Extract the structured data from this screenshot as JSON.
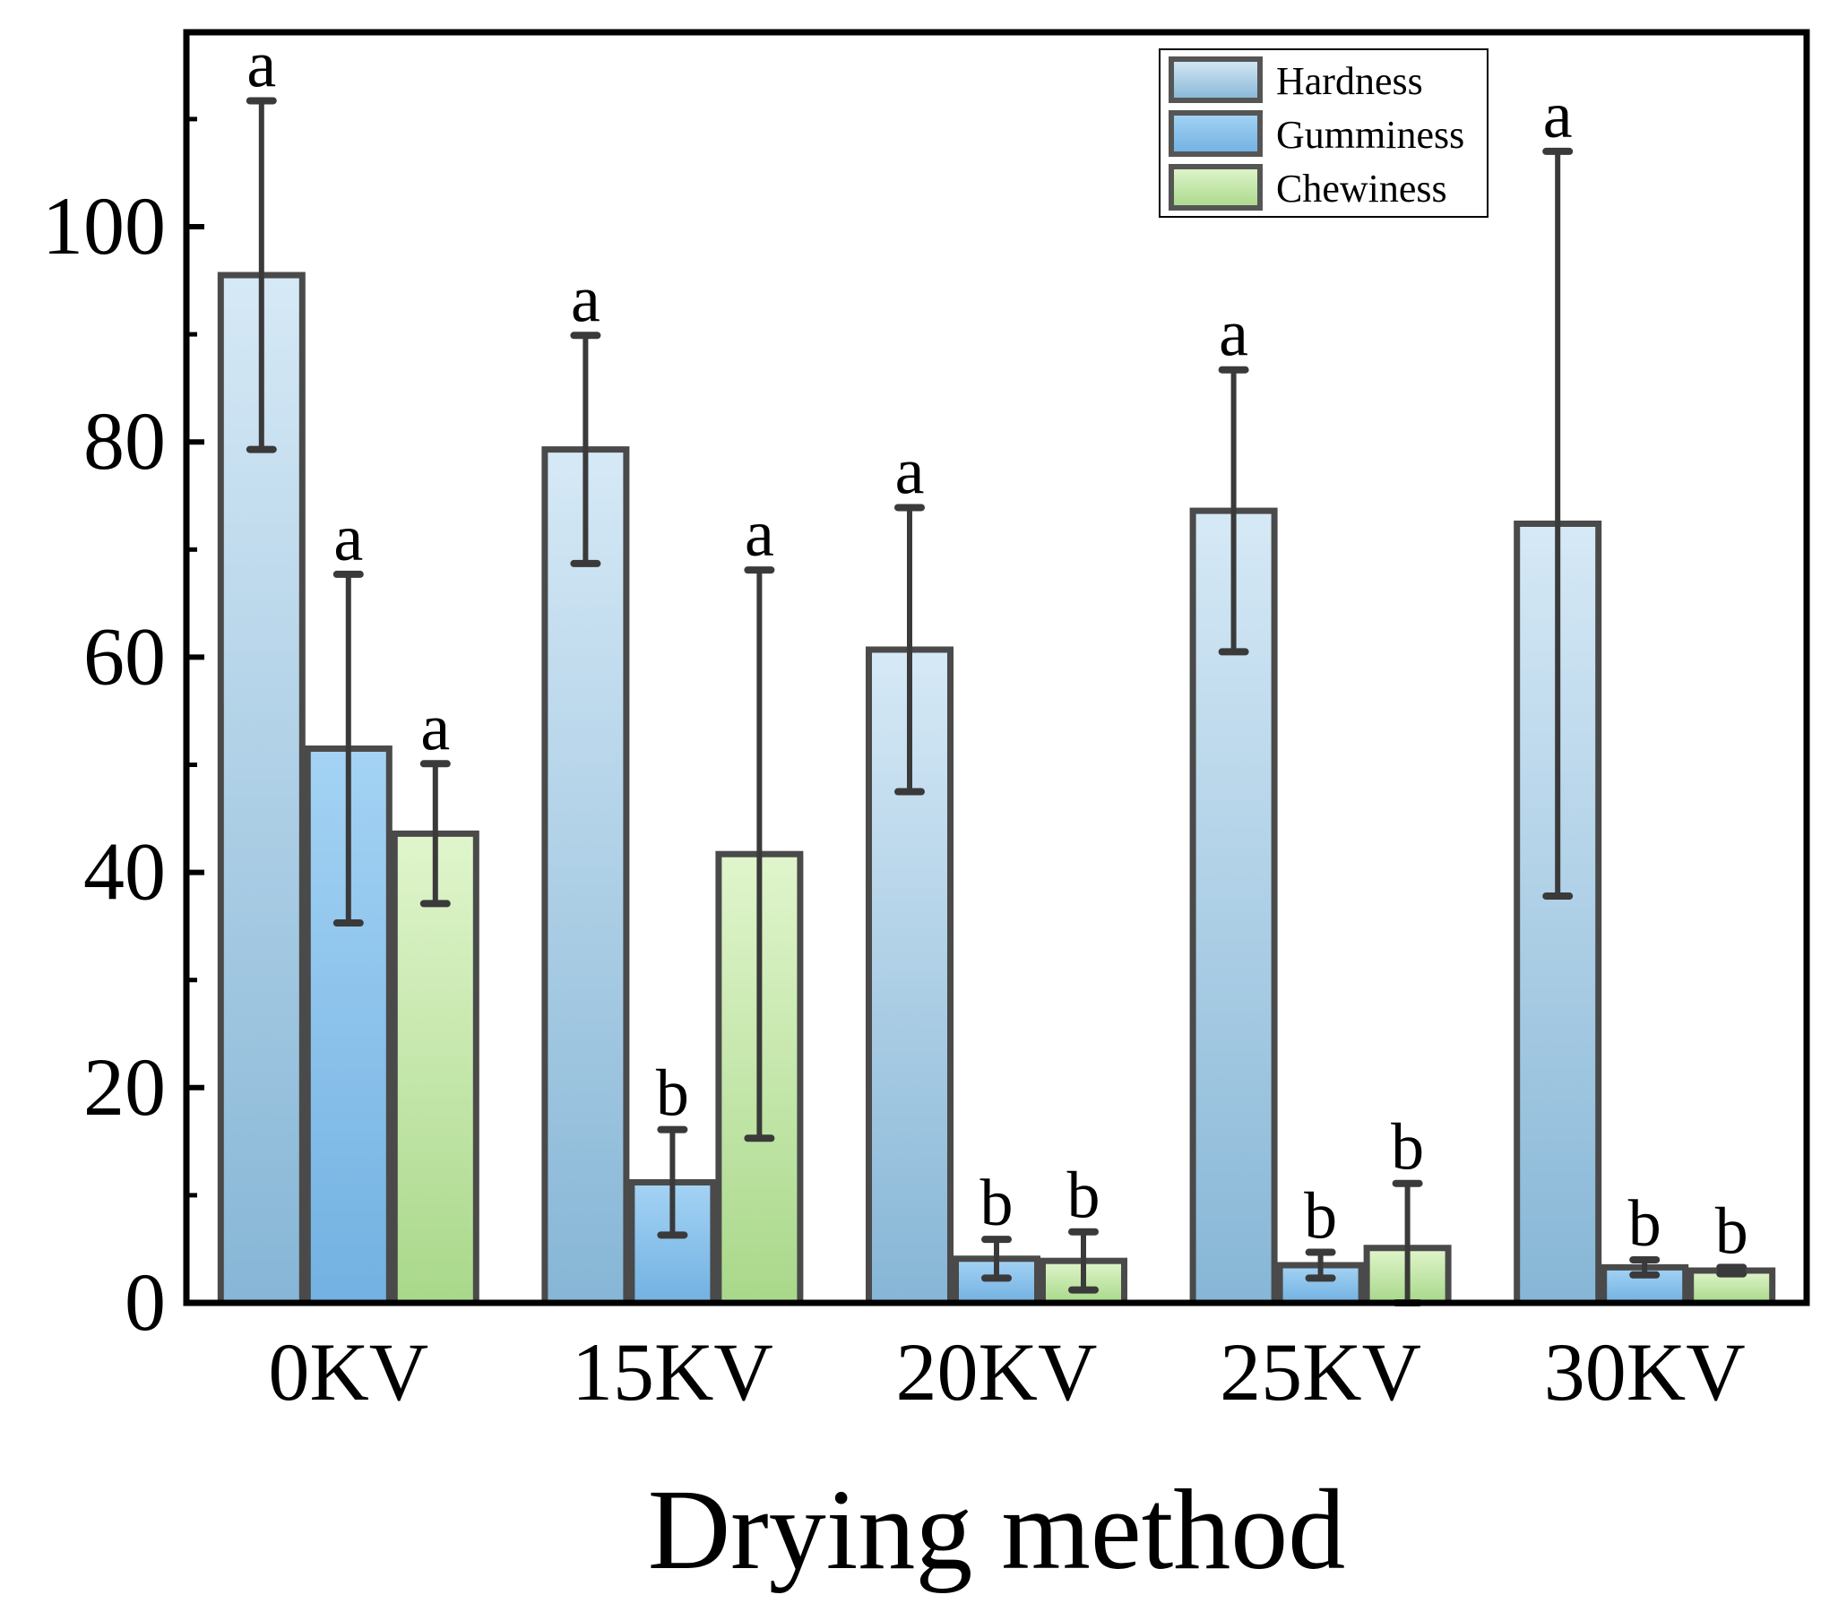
{
  "chart_data": {
    "type": "bar",
    "title": "",
    "xlabel": "Drying method",
    "ylabel": "",
    "ylim": [
      0,
      120
    ],
    "yticks": [
      0,
      20,
      40,
      60,
      80,
      100
    ],
    "grid": false,
    "legend_position": "top-right",
    "categories": [
      "0KV",
      "15KV",
      "20KV",
      "25KV",
      "30KV"
    ],
    "series": [
      {
        "name": "Hardness",
        "color_top": "#d6e9f6",
        "color_bottom": "#86b6d6",
        "values": [
          95.5,
          79.3,
          60.7,
          73.6,
          72.4
        ],
        "errors": [
          16.2,
          10.6,
          13.2,
          13.1,
          34.6
        ],
        "letters": [
          "a",
          "a",
          "a",
          "a",
          "a"
        ]
      },
      {
        "name": "Gumminess",
        "color_top": "#a4d3f4",
        "color_bottom": "#72b1e2",
        "values": [
          51.5,
          11.2,
          4.1,
          3.5,
          3.3
        ],
        "errors": [
          16.2,
          4.9,
          1.8,
          1.2,
          0.7
        ],
        "letters": [
          "a",
          "b",
          "b",
          "b",
          "b"
        ]
      },
      {
        "name": "Chewiness",
        "color_top": "#e0f5cc",
        "color_bottom": "#a9d88a",
        "values": [
          43.6,
          41.7,
          3.9,
          5.1,
          3.0
        ],
        "errors": [
          6.5,
          26.4,
          2.7,
          6.0,
          0.3
        ],
        "letters": [
          "a",
          "a",
          "b",
          "b",
          "b"
        ]
      }
    ]
  }
}
